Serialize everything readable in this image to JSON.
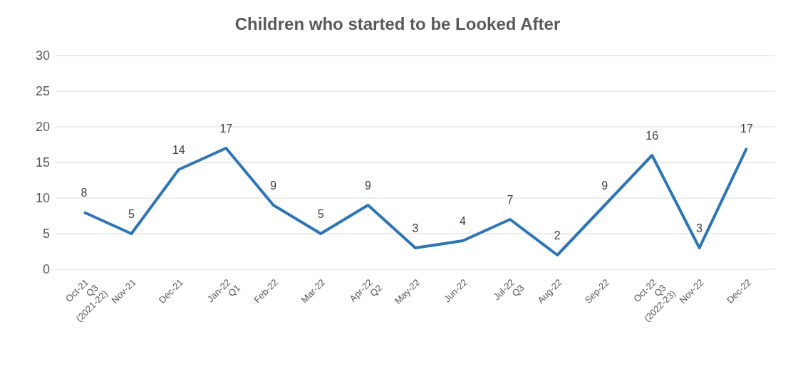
{
  "chart_data": {
    "type": "line",
    "title": "Children who started to be Looked After",
    "categories": [
      "Oct-21\nQ3\n(2021-22)",
      "Nov-21",
      "Dec-21",
      "Jan-22\nQ1",
      "Feb-22",
      "Mar-22",
      "Apr-22\nQ2",
      "May-22",
      "Jun-22",
      "Jul-22\nQ3",
      "Aug-22",
      "Sep-22",
      "Oct-22\nQ3\n(2022-23)",
      "Nov-22",
      "Dec-22"
    ],
    "series": [
      {
        "color": "#2e75b6",
        "values": [
          8,
          5,
          14,
          17,
          9,
          5,
          9,
          3,
          4,
          7,
          2,
          9,
          16,
          3,
          17
        ]
      }
    ],
    "ylim": [
      0,
      30
    ],
    "yticks": [
      0,
      5,
      10,
      15,
      20,
      25,
      30
    ],
    "grid": "y",
    "data_labels": true,
    "marker": "none",
    "line_style": "solid",
    "legend": false
  }
}
